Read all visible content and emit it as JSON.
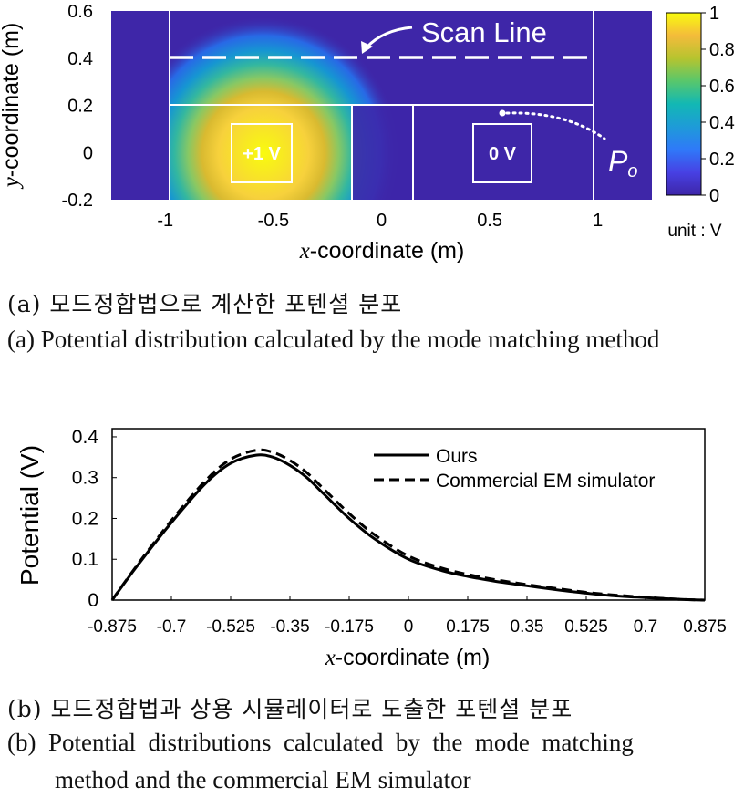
{
  "chart_data": [
    {
      "type": "heatmap",
      "title": "",
      "xlabel_italic": "x",
      "xlabel_rest": "-coordinate (m)",
      "ylabel_italic": "y",
      "ylabel_rest": "-coordinate (m)",
      "xlim": [
        -1.25,
        1.25
      ],
      "ylim": [
        -0.2,
        0.6
      ],
      "x_ticks": [
        "-1",
        "-0.5",
        "0",
        "0.5",
        "1"
      ],
      "x_tick_values": [
        -1,
        -0.5,
        0,
        0.5,
        1
      ],
      "y_ticks": [
        "0.6",
        "0.4",
        "0.2",
        "0",
        "-0.2"
      ],
      "y_tick_values": [
        0.6,
        0.4,
        0.2,
        0,
        -0.2
      ],
      "colorbar": {
        "range": [
          0,
          1
        ],
        "ticks": [
          "1",
          "0.8",
          "0.6",
          "0.4",
          "0.2",
          "0"
        ],
        "tick_values": [
          1,
          0.8,
          0.6,
          0.4,
          0.2,
          0
        ],
        "unit_label": "unit : V",
        "colormap": "parula"
      },
      "source": {
        "label": "+1 V",
        "center": [
          -0.5,
          0
        ],
        "potential": 1
      },
      "probe": {
        "label": "0 V",
        "center": [
          0.5,
          0
        ],
        "potential": 0
      },
      "scan_line": {
        "label": "Scan Line",
        "y": 0.4
      },
      "point_label_main": "P",
      "point_label_sub": "o",
      "point": [
        0.5,
        0.17
      ],
      "walls": {
        "x_left": -0.875,
        "x_right": 0.875,
        "y_top_channel": 0.2,
        "inner_gap_x": [
          -0.125,
          0.125
        ],
        "source_half_width": 0.125,
        "probe_half_width": 0.125
      }
    },
    {
      "type": "line",
      "title": "",
      "xlabel_italic": "x",
      "xlabel_rest": "-coordinate (m)",
      "ylabel": "Potential (V)",
      "xlim": [
        -0.875,
        0.875
      ],
      "ylim": [
        0,
        0.4
      ],
      "x_ticks": [
        "-0.875",
        "-0.7",
        "-0.525",
        "-0.35",
        "-0.175",
        "0",
        "0.175",
        "0.35",
        "0.525",
        "0.7",
        "0.875"
      ],
      "x_tick_values": [
        -0.875,
        -0.7,
        -0.525,
        -0.35,
        -0.175,
        0,
        0.175,
        0.35,
        0.525,
        0.7,
        0.875
      ],
      "y_ticks": [
        "0.4",
        "0.3",
        "0.2",
        "0.1",
        "0"
      ],
      "y_tick_values": [
        0.4,
        0.3,
        0.2,
        0.1,
        0
      ],
      "legend_position": "top-right",
      "x": [
        -0.875,
        -0.8,
        -0.7,
        -0.6,
        -0.525,
        -0.45,
        -0.4,
        -0.35,
        -0.3,
        -0.25,
        -0.175,
        -0.1,
        0,
        0.1,
        0.175,
        0.25,
        0.35,
        0.45,
        0.525,
        0.6,
        0.7,
        0.8,
        0.875
      ],
      "series": [
        {
          "name": "Ours",
          "style": "solid",
          "values": [
            0,
            0.085,
            0.19,
            0.285,
            0.335,
            0.355,
            0.35,
            0.33,
            0.3,
            0.26,
            0.2,
            0.15,
            0.1,
            0.072,
            0.058,
            0.047,
            0.035,
            0.024,
            0.017,
            0.011,
            0.006,
            0.002,
            0
          ]
        },
        {
          "name": "Commercial EM simulator",
          "style": "dashed",
          "values": [
            0,
            0.087,
            0.195,
            0.292,
            0.345,
            0.367,
            0.362,
            0.342,
            0.312,
            0.272,
            0.212,
            0.16,
            0.108,
            0.078,
            0.063,
            0.051,
            0.038,
            0.027,
            0.019,
            0.013,
            0.007,
            0.002,
            0
          ]
        }
      ]
    }
  ],
  "captions": {
    "a_ko": "(a) 모드정합법으로 계산한 포텐셜 분포",
    "a_en": "(a) Potential distribution calculated by the mode matching method",
    "b_ko": "(b) 모드정합법과 상용 시뮬레이터로 도출한 포텐셜 분포",
    "b_en_1": "(b)  Potential  distributions  calculated  by  the  mode  matching",
    "b_en_2": "method and the commercial EM simulator"
  }
}
